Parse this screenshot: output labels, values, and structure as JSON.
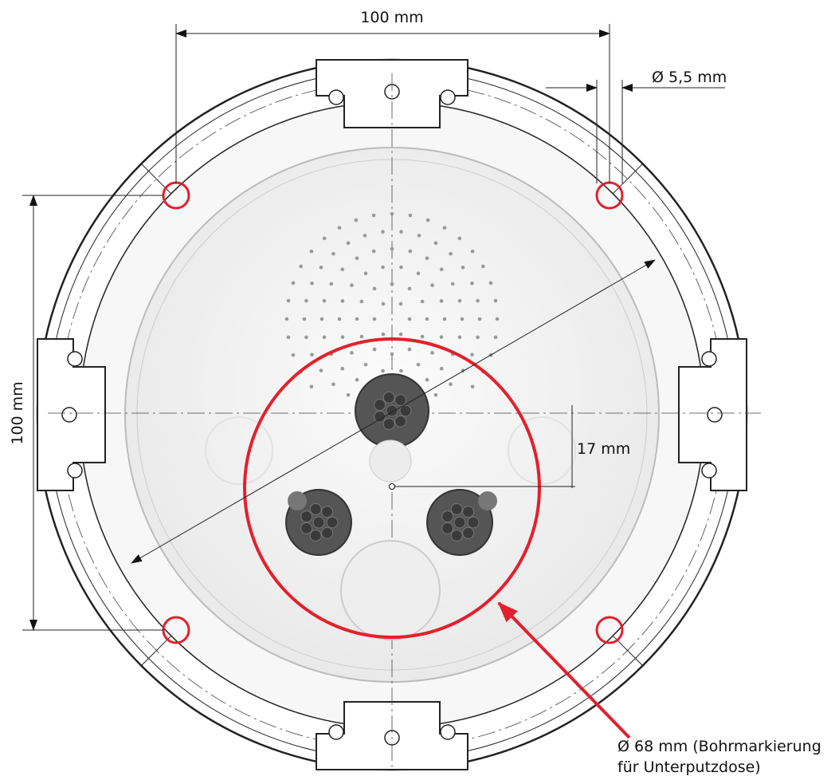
{
  "dimensions": {
    "width_top": "100 mm",
    "hole_diameter": "Ø 5,5 mm",
    "height_left": "100 mm",
    "offset": "17 mm"
  },
  "annotation": {
    "lines": [
      "Ø 68 mm (Bohrmarkierung",
      "für Unterputzdose)"
    ]
  }
}
